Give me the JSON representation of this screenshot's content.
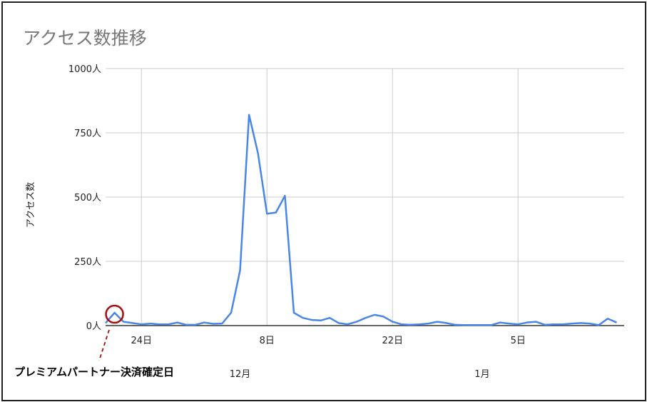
{
  "chart_data": {
    "type": "line",
    "title": "アクセス数推移",
    "ylabel": "アクセス数",
    "xlabel": "",
    "ylim": [
      0,
      1000
    ],
    "yticks": [
      "0人",
      "250人",
      "500人",
      "750人",
      "1000人"
    ],
    "ytick_values": [
      0,
      250,
      500,
      750,
      1000
    ],
    "xticks": [
      {
        "label": "24日",
        "x": "11/24"
      },
      {
        "label": "8日",
        "x": "12/8"
      },
      {
        "label": "22日",
        "x": "12/22"
      },
      {
        "label": "5日",
        "x": "1/5"
      }
    ],
    "month_labels": [
      {
        "label": "12月",
        "x": "12/5"
      },
      {
        "label": "1月",
        "x": "1/1"
      }
    ],
    "grid": true,
    "x": [
      "11/20",
      "11/21",
      "11/22",
      "11/23",
      "11/24",
      "11/25",
      "11/26",
      "11/27",
      "11/28",
      "11/29",
      "11/30",
      "12/1",
      "12/2",
      "12/3",
      "12/4",
      "12/5",
      "12/6",
      "12/7",
      "12/8",
      "12/9",
      "12/10",
      "12/11",
      "12/12",
      "12/13",
      "12/14",
      "12/15",
      "12/16",
      "12/17",
      "12/18",
      "12/19",
      "12/20",
      "12/21",
      "12/22",
      "12/23",
      "12/24",
      "12/25",
      "12/26",
      "12/27",
      "12/28",
      "12/29",
      "12/30",
      "12/31",
      "1/1",
      "1/2",
      "1/3",
      "1/4",
      "1/5",
      "1/6",
      "1/7",
      "1/8",
      "1/9",
      "1/10",
      "1/11",
      "1/12",
      "1/13",
      "1/14",
      "1/15",
      "1/16"
    ],
    "values": [
      10,
      50,
      15,
      10,
      5,
      8,
      5,
      5,
      12,
      3,
      3,
      12,
      7,
      8,
      50,
      215,
      820,
      670,
      435,
      440,
      505,
      50,
      30,
      22,
      20,
      30,
      10,
      5,
      15,
      30,
      42,
      35,
      15,
      5,
      3,
      5,
      8,
      15,
      10,
      3,
      2,
      2,
      2,
      2,
      12,
      8,
      5,
      12,
      15,
      3,
      5,
      5,
      8,
      10,
      8,
      2,
      27,
      12
    ],
    "line_color": "#4a86e8",
    "annotation": {
      "label": "プレミアムパートナー決済確定日",
      "x": "11/21",
      "color": "#a50f0f"
    }
  }
}
